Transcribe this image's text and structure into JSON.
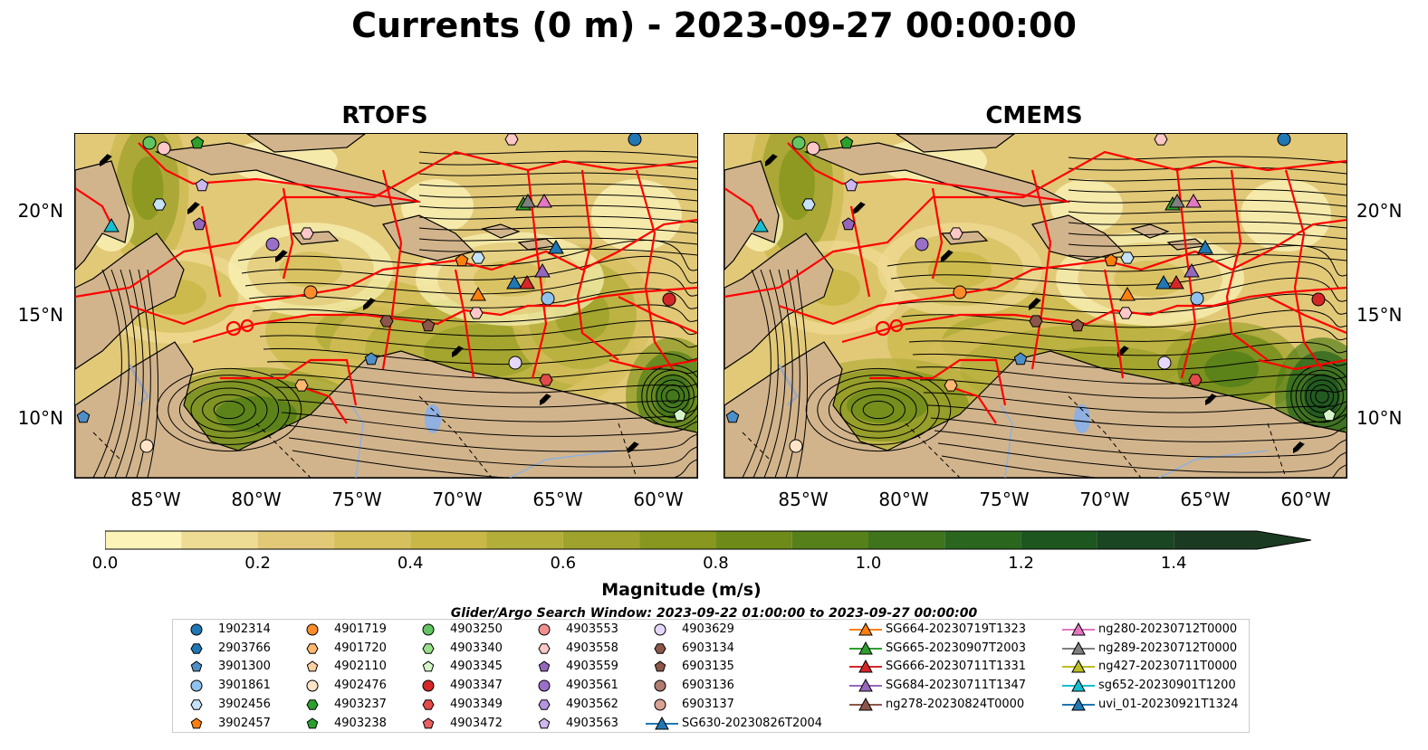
{
  "figure": {
    "title": "Currents (0 m) - 2023-09-27 00:00:00",
    "panels": [
      {
        "title": "RTOFS"
      },
      {
        "title": "CMEMS"
      }
    ],
    "lat_labels": [
      "20°N",
      "15°N",
      "10°N"
    ],
    "lon_labels": [
      "85°W",
      "80°W",
      "75°W",
      "70°W",
      "65°W",
      "60°W"
    ],
    "extent": {
      "lon": [
        -89,
        -58
      ],
      "lat": [
        7,
        24
      ]
    }
  },
  "colorbar": {
    "title": "Magnitude (m/s)",
    "ticks": [
      "0.0",
      "0.2",
      "0.4",
      "0.6",
      "0.8",
      "1.0",
      "1.2",
      "1.4"
    ],
    "min": 0.0,
    "max": 1.5,
    "step": 0.1,
    "colors": [
      "#fbf3b8",
      "#efdc94",
      "#e2c978",
      "#d6bf5d",
      "#c9b848",
      "#b3ad39",
      "#9fa22c",
      "#88971f",
      "#6e8b1a",
      "#568019",
      "#3f741c",
      "#2a661e",
      "#1e5620",
      "#1a4622",
      "#1b3a22"
    ]
  },
  "legend": {
    "title": "Glider/Argo Search Window: 2023-09-22 01:00:00 to 2023-09-27 00:00:00",
    "argo": [
      {
        "label": "1902314",
        "marker": "circle",
        "color": "#1f77b4"
      },
      {
        "label": "2903766",
        "marker": "hexagon",
        "color": "#1f77b4"
      },
      {
        "label": "3901300",
        "marker": "pentagon",
        "color": "#4f8fc8"
      },
      {
        "label": "3901861",
        "marker": "circle",
        "color": "#8fc2ee"
      },
      {
        "label": "3902456",
        "marker": "hexagon",
        "color": "#c5e2f7"
      },
      {
        "label": "3902457",
        "marker": "pentagon",
        "color": "#ff7f0e"
      },
      {
        "label": "4901719",
        "marker": "circle",
        "color": "#ff8c2a"
      },
      {
        "label": "4901720",
        "marker": "hexagon",
        "color": "#ffb870"
      },
      {
        "label": "4902110",
        "marker": "pentagon",
        "color": "#ffd0a0"
      },
      {
        "label": "4902476",
        "marker": "circle",
        "color": "#ffe4c8"
      },
      {
        "label": "4903237",
        "marker": "hexagon",
        "color": "#2ca02c"
      },
      {
        "label": "4903238",
        "marker": "pentagon",
        "color": "#2ca02c"
      },
      {
        "label": "4903250",
        "marker": "circle",
        "color": "#62c462"
      },
      {
        "label": "4903340",
        "marker": "hexagon",
        "color": "#98df8a"
      },
      {
        "label": "4903345",
        "marker": "pentagon",
        "color": "#d5f5c8"
      },
      {
        "label": "4903347",
        "marker": "circle",
        "color": "#d62728"
      },
      {
        "label": "4903349",
        "marker": "hexagon",
        "color": "#e24a4a"
      },
      {
        "label": "4903472",
        "marker": "pentagon",
        "color": "#e86060"
      },
      {
        "label": "4903553",
        "marker": "circle",
        "color": "#f08f8f"
      },
      {
        "label": "4903558",
        "marker": "hexagon",
        "color": "#ffc8c8"
      },
      {
        "label": "4903559",
        "marker": "pentagon",
        "color": "#9467bd"
      },
      {
        "label": "4903561",
        "marker": "circle",
        "color": "#9a6fc8"
      },
      {
        "label": "4903562",
        "marker": "hexagon",
        "color": "#b595e0"
      },
      {
        "label": "4903563",
        "marker": "pentagon",
        "color": "#cdb8f0"
      },
      {
        "label": "4903629",
        "marker": "circle",
        "color": "#e6d8fa"
      },
      {
        "label": "6903134",
        "marker": "hexagon",
        "color": "#8c564b"
      },
      {
        "label": "6903135",
        "marker": "pentagon",
        "color": "#8c564b"
      },
      {
        "label": "6903136",
        "marker": "circle",
        "color": "#b07d72"
      },
      {
        "label": "6903137",
        "marker": "circle",
        "color": "#d9a293"
      }
    ],
    "gliders": [
      {
        "label": "SG630-20230826T2004",
        "color": "#1f77b4"
      },
      {
        "label": "SG664-20230719T1323",
        "color": "#ff7f0e"
      },
      {
        "label": "SG665-20230907T2003",
        "color": "#2ca02c"
      },
      {
        "label": "SG666-20230711T1331",
        "color": "#d62728"
      },
      {
        "label": "SG684-20230711T1347",
        "color": "#9467bd"
      },
      {
        "label": "ng278-20230824T0000",
        "color": "#8c564b"
      },
      {
        "label": "ng280-20230712T0000",
        "color": "#e377c2"
      },
      {
        "label": "ng289-20230712T0000",
        "color": "#7f7f7f"
      },
      {
        "label": "ng427-20230711T0000",
        "color": "#bcbd22"
      },
      {
        "label": "sg652-20230901T1200",
        "color": "#17becf"
      },
      {
        "label": "uvi_01-20230921T1324",
        "color": "#1f77b4"
      }
    ]
  }
}
